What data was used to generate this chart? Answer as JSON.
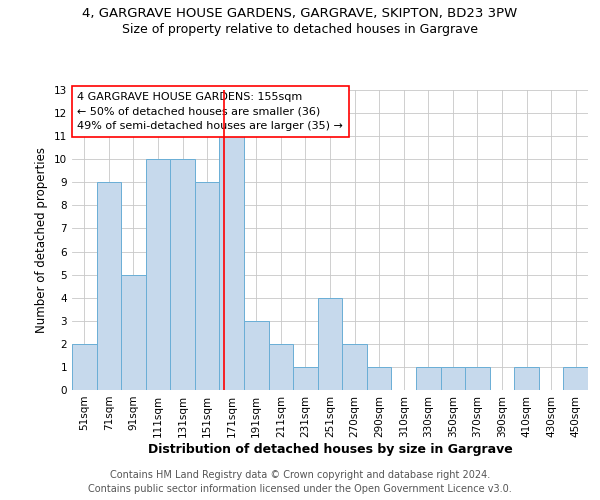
{
  "title": "4, GARGRAVE HOUSE GARDENS, GARGRAVE, SKIPTON, BD23 3PW",
  "subtitle": "Size of property relative to detached houses in Gargrave",
  "xlabel": "Distribution of detached houses by size in Gargrave",
  "ylabel": "Number of detached properties",
  "categories": [
    "51sqm",
    "71sqm",
    "91sqm",
    "111sqm",
    "131sqm",
    "151sqm",
    "171sqm",
    "191sqm",
    "211sqm",
    "231sqm",
    "251sqm",
    "270sqm",
    "290sqm",
    "310sqm",
    "330sqm",
    "350sqm",
    "370sqm",
    "390sqm",
    "410sqm",
    "430sqm",
    "450sqm"
  ],
  "values": [
    2,
    9,
    5,
    10,
    10,
    9,
    11,
    3,
    2,
    1,
    4,
    2,
    1,
    0,
    1,
    1,
    1,
    0,
    1,
    0,
    1
  ],
  "bar_color": "#c6d9ec",
  "bar_edge_color": "#6aaed6",
  "red_line_x": 5.7,
  "annotation_lines": [
    "4 GARGRAVE HOUSE GARDENS: 155sqm",
    "← 50% of detached houses are smaller (36)",
    "49% of semi-detached houses are larger (35) →"
  ],
  "ylim": [
    0,
    13
  ],
  "yticks": [
    0,
    1,
    2,
    3,
    4,
    5,
    6,
    7,
    8,
    9,
    10,
    11,
    12,
    13
  ],
  "footnote": "Contains HM Land Registry data © Crown copyright and database right 2024.\nContains public sector information licensed under the Open Government Licence v3.0.",
  "background_color": "#ffffff",
  "grid_color": "#c8c8c8",
  "title_fontsize": 9.5,
  "subtitle_fontsize": 9,
  "xlabel_fontsize": 9,
  "ylabel_fontsize": 8.5,
  "tick_fontsize": 7.5,
  "annotation_fontsize": 8,
  "footnote_fontsize": 7
}
